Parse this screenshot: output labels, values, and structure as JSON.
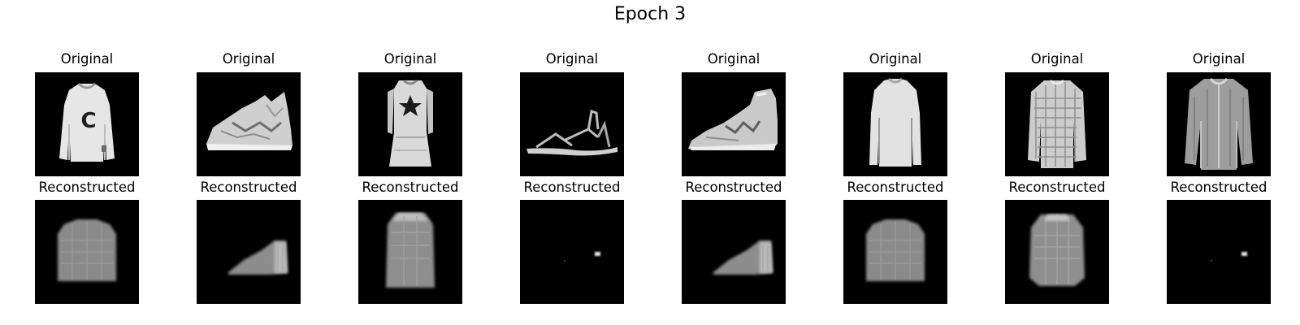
{
  "figure": {
    "title": "Epoch 3"
  },
  "rows": [
    {
      "row": "original",
      "title": "Original",
      "items": [
        {
          "content": "sweatshirt-with-letter",
          "letter": "C"
        },
        {
          "content": "sneaker"
        },
        {
          "content": "dress-with-star"
        },
        {
          "content": "sandal"
        },
        {
          "content": "ankle-boot"
        },
        {
          "content": "long-sleeve-top"
        },
        {
          "content": "checked-shirt"
        },
        {
          "content": "button-shirt"
        }
      ]
    },
    {
      "row": "reconstructed",
      "title": "Reconstructed",
      "items": [
        {
          "content": "blurry-top"
        },
        {
          "content": "blurry-shoe"
        },
        {
          "content": "blurry-dress"
        },
        {
          "content": "near-empty-dot"
        },
        {
          "content": "blurry-shoe"
        },
        {
          "content": "blurry-top"
        },
        {
          "content": "blurry-shirt"
        },
        {
          "content": "near-empty-dot"
        }
      ]
    }
  ],
  "colors": {
    "panel_background": "#000000",
    "figure_background": "#ffffff"
  }
}
